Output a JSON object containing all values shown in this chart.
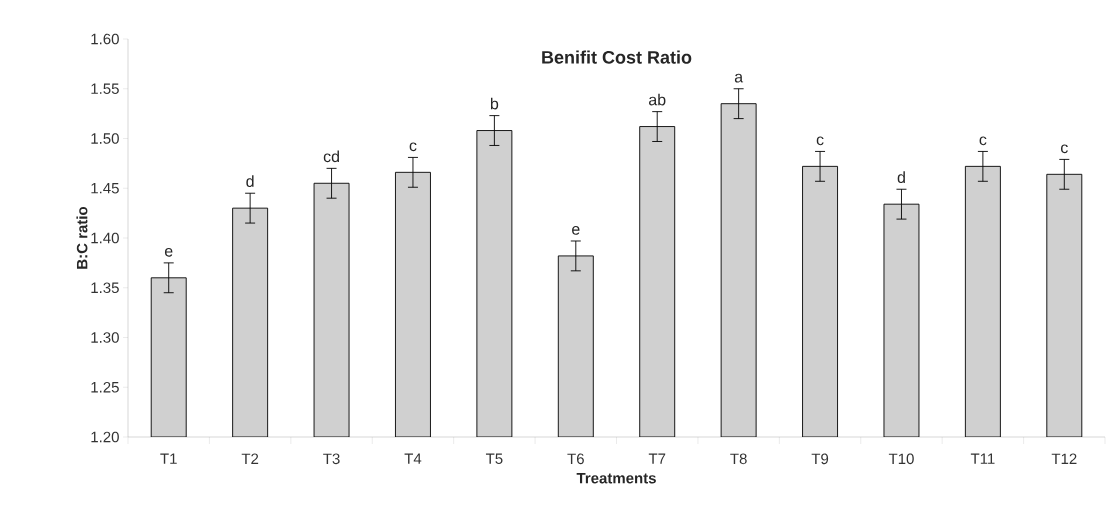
{
  "chart_data": {
    "type": "bar",
    "title": "Benifit Cost Ratio",
    "xlabel": "Treatments",
    "ylabel": "B:C ratio",
    "categories": [
      "T1",
      "T2",
      "T3",
      "T4",
      "T5",
      "T6",
      "T7",
      "T8",
      "T9",
      "T10",
      "T11",
      "T12"
    ],
    "values": [
      1.36,
      1.43,
      1.455,
      1.466,
      1.508,
      1.382,
      1.512,
      1.535,
      1.472,
      1.434,
      1.472,
      1.464
    ],
    "errors": [
      0.015,
      0.015,
      0.015,
      0.015,
      0.015,
      0.015,
      0.015,
      0.015,
      0.015,
      0.015,
      0.015,
      0.015
    ],
    "color": "#d0d0d0",
    "ylim": [
      1.2,
      1.6
    ],
    "yticks": [
      {
        "value": 1.2,
        "label": "1.20"
      },
      {
        "value": 1.25,
        "label": "1.25"
      },
      {
        "value": 1.3,
        "label": "1.30"
      },
      {
        "value": 1.35,
        "label": "1.35"
      },
      {
        "value": 1.4,
        "label": "1.40"
      },
      {
        "value": 1.45,
        "label": "1.45"
      },
      {
        "value": 1.5,
        "label": "1.50"
      },
      {
        "value": 1.55,
        "label": "1.55"
      },
      {
        "value": 1.6,
        "label": "1.60"
      }
    ],
    "annotations": [
      {
        "text": "e",
        "x": "T1",
        "y": 1.375
      },
      {
        "text": "d",
        "x": "T2",
        "y": 1.445
      },
      {
        "text": "cd",
        "x": "T3",
        "y": 1.47
      },
      {
        "text": "c",
        "x": "T4",
        "y": 1.481
      },
      {
        "text": "b",
        "x": "T5",
        "y": 1.523
      },
      {
        "text": "e",
        "x": "T6",
        "y": 1.397
      },
      {
        "text": "ab",
        "x": "T7",
        "y": 1.527
      },
      {
        "text": "a",
        "x": "T8",
        "y": 1.55
      },
      {
        "text": "c",
        "x": "T9",
        "y": 1.487
      },
      {
        "text": "d",
        "x": "T10",
        "y": 1.449
      },
      {
        "text": "c",
        "x": "T11",
        "y": 1.487
      },
      {
        "text": "c",
        "x": "T12",
        "y": 1.479
      }
    ],
    "grid": false
  }
}
